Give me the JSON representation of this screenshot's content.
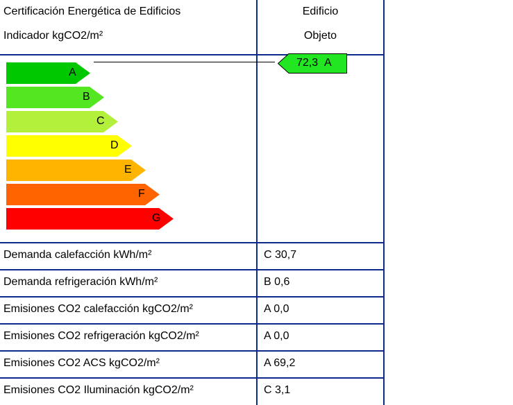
{
  "header": {
    "title": "Certificación Energética de Edificios",
    "subtitle": "Indicador kgCO2/m²",
    "col_title": "Edificio",
    "col_subtitle": "Objeto"
  },
  "rating": {
    "value": "72,3",
    "letter": "A",
    "color": "#22e622"
  },
  "scale": [
    {
      "letter": "A",
      "color": "#00c800"
    },
    {
      "letter": "B",
      "color": "#55e622"
    },
    {
      "letter": "C",
      "color": "#b3f03c"
    },
    {
      "letter": "D",
      "color": "#ffff00"
    },
    {
      "letter": "E",
      "color": "#ffb400"
    },
    {
      "letter": "F",
      "color": "#ff6400"
    },
    {
      "letter": "G",
      "color": "#ff0000"
    }
  ],
  "rows": [
    {
      "label": "Demanda calefacción kWh/m²",
      "value": "C 30,7"
    },
    {
      "label": "Demanda refrigeración kWh/m²",
      "value": "B 0,6"
    },
    {
      "label": "Emisiones CO2 calefacción kgCO2/m²",
      "value": "A 0,0"
    },
    {
      "label": "Emisiones CO2 refrigeración kgCO2/m²",
      "value": "A 0,0"
    },
    {
      "label": "Emisiones CO2 ACS kgCO2/m²",
      "value": "A 69,2"
    },
    {
      "label": "Emisiones CO2 Iluminación kgCO2/m²",
      "value": "C 3,1"
    }
  ]
}
